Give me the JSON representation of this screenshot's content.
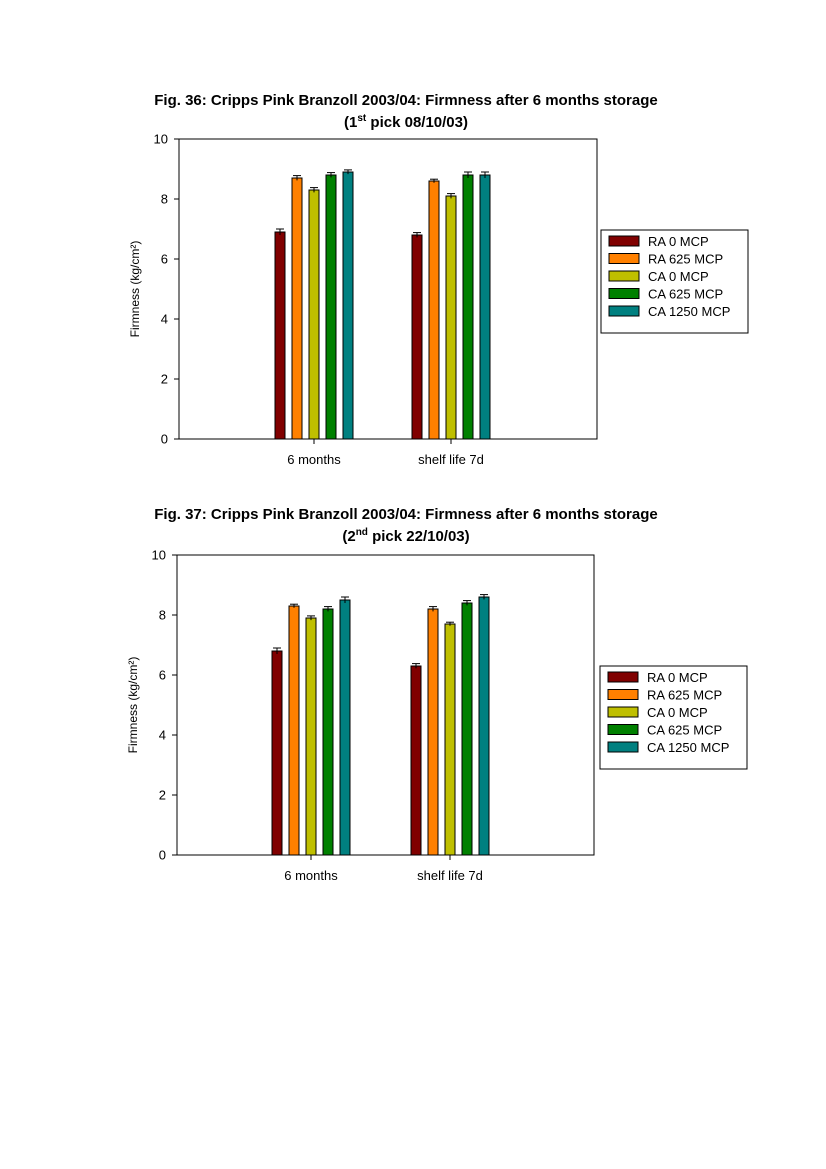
{
  "colors": {
    "RA 0 MCP": "#800000",
    "RA 625 MCP": "#ff8000",
    "CA 0 MCP": "#bfbf00",
    "CA 625 MCP": "#008000",
    "CA 1250 MCP": "#008080"
  },
  "chart_data": [
    {
      "type": "bar",
      "title_line1": "Fig. 36: Cripps Pink Branzoll 2003/04: Firmness after 6 months storage",
      "title_line2_prefix": "(1",
      "title_line2_sup": "st",
      "title_line2_suffix": " pick 08/10/03)",
      "ylabel": "Firmness (kg/cm²)",
      "ylim": [
        0,
        10
      ],
      "yticks": [
        "0",
        "2",
        "4",
        "6",
        "8",
        "10"
      ],
      "categories": [
        "6 months",
        "shelf life 7d"
      ],
      "legend_placement": "right",
      "grid": false,
      "series": [
        {
          "name": "RA 0 MCP",
          "values": [
            6.9,
            6.8
          ],
          "errors": [
            0.1,
            0.08
          ]
        },
        {
          "name": "RA 625 MCP",
          "values": [
            8.7,
            8.6
          ],
          "errors": [
            0.08,
            0.06
          ]
        },
        {
          "name": "CA 0 MCP",
          "values": [
            8.3,
            8.1
          ],
          "errors": [
            0.08,
            0.08
          ]
        },
        {
          "name": "CA 625 MCP",
          "values": [
            8.8,
            8.8
          ],
          "errors": [
            0.08,
            0.1
          ]
        },
        {
          "name": "CA 1250 MCP",
          "values": [
            8.9,
            8.8
          ],
          "errors": [
            0.07,
            0.1
          ]
        }
      ]
    },
    {
      "type": "bar",
      "title_line1": "Fig. 37: Cripps Pink Branzoll 2003/04: Firmness after 6 months storage",
      "title_line2_prefix": "(2",
      "title_line2_sup": "nd",
      "title_line2_suffix": " pick 22/10/03)",
      "ylabel": "Firmness (kg/cm²)",
      "ylim": [
        0,
        10
      ],
      "yticks": [
        "0",
        "2",
        "4",
        "6",
        "8",
        "10"
      ],
      "categories": [
        "6 months",
        "shelf life 7d"
      ],
      "legend_placement": "right",
      "grid": false,
      "series": [
        {
          "name": "RA 0 MCP",
          "values": [
            6.8,
            6.3
          ],
          "errors": [
            0.1,
            0.08
          ]
        },
        {
          "name": "RA 625 MCP",
          "values": [
            8.3,
            8.2
          ],
          "errors": [
            0.06,
            0.08
          ]
        },
        {
          "name": "CA 0 MCP",
          "values": [
            7.9,
            7.7
          ],
          "errors": [
            0.07,
            0.06
          ]
        },
        {
          "name": "CA 625 MCP",
          "values": [
            8.2,
            8.4
          ],
          "errors": [
            0.08,
            0.08
          ]
        },
        {
          "name": "CA 1250 MCP",
          "values": [
            8.5,
            8.6
          ],
          "errors": [
            0.1,
            0.08
          ]
        }
      ]
    }
  ]
}
